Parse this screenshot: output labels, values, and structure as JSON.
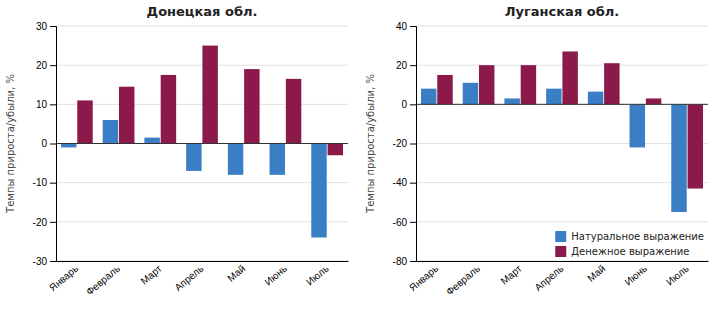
{
  "chart_data": [
    {
      "type": "bar",
      "title": "Донецкая обл.",
      "categories": [
        "Январь",
        "Февраль",
        "Март",
        "Апрель",
        "Май",
        "Июнь",
        "Июль"
      ],
      "series": [
        {
          "color": "#3A7EC6",
          "values": [
            -1,
            6,
            1.5,
            -7,
            -8,
            -8,
            -24
          ]
        },
        {
          "color": "#8B1A4A",
          "values": [
            11,
            14.5,
            17.5,
            25,
            19,
            16.5,
            -3
          ]
        }
      ],
      "ylabel": "Темпы прироста/убыли, %",
      "ylim": [
        -30,
        30
      ],
      "yticks": [
        -30,
        -20,
        -10,
        0,
        10,
        20,
        30
      ],
      "grid": true
    },
    {
      "type": "bar",
      "title": "Луганская обл.",
      "categories": [
        "Январь",
        "Февраль",
        "Март",
        "Апрель",
        "Май",
        "Июнь",
        "Июль"
      ],
      "series": [
        {
          "name": "Натуральное выражение",
          "color": "#3A7EC6",
          "values": [
            8,
            11,
            3,
            8,
            6.5,
            -22,
            -55
          ]
        },
        {
          "name": "Денежное выражение",
          "color": "#8B1A4A",
          "values": [
            15,
            20,
            20,
            27,
            21,
            3,
            -43
          ]
        }
      ],
      "ylabel": "Темпы прироста/убыли, %",
      "ylim": [
        -80,
        40
      ],
      "yticks": [
        -80,
        -60,
        -40,
        -20,
        0,
        20,
        40
      ],
      "grid": true,
      "legend": "lower right"
    }
  ]
}
